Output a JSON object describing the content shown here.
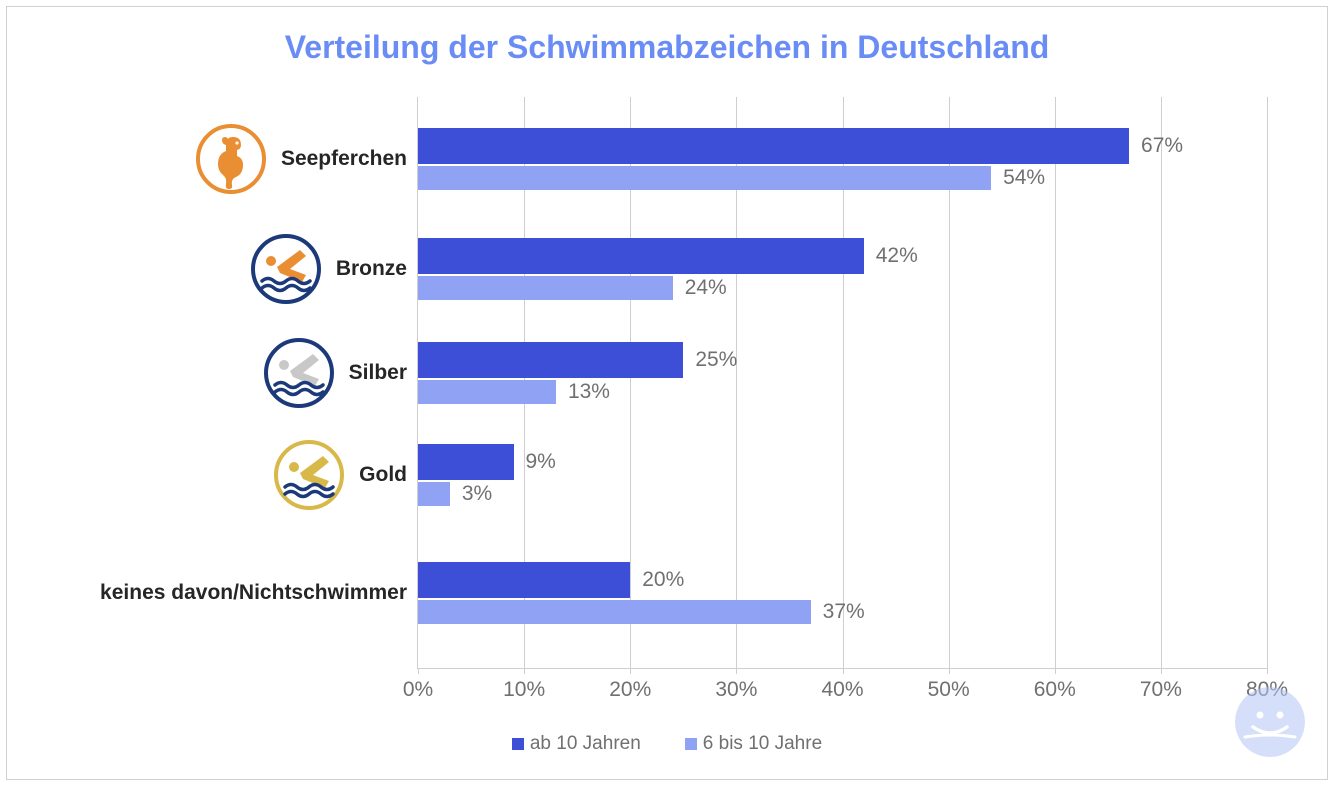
{
  "chart": {
    "type": "grouped-horizontal-bar",
    "title": "Verteilung der Schwimmabzeichen in Deutschland",
    "title_color": "#6a8cf5",
    "title_fontsize": 32,
    "background_color": "#ffffff",
    "border_color": "#d0d0d0",
    "grid_color": "#cfcfcf",
    "axis_label_color": "#707070",
    "axis_label_fontsize": 21,
    "cat_label_fontsize": 21,
    "value_label_fontsize": 21,
    "bar_height_primary": 36,
    "bar_height_secondary": 24,
    "xlim": [
      0,
      80
    ],
    "xtick_step": 10,
    "xtick_labels": [
      "0%",
      "10%",
      "20%",
      "30%",
      "40%",
      "50%",
      "60%",
      "70%",
      "80%"
    ],
    "series": [
      {
        "key": "over10",
        "label": "ab 10 Jahren",
        "color": "#3d4fd6"
      },
      {
        "key": "6to10",
        "label": "6 bis 10 Jahre",
        "color": "#8fa2f3"
      }
    ],
    "categories": [
      {
        "label": "Seepferchen",
        "icon": "seahorse",
        "icon_ring": "#e98e33",
        "icon_accent": "#e98e33",
        "icon_accent2": "#e98e33",
        "values": {
          "over10": 67,
          "6to10": 54
        },
        "value_labels": {
          "over10": "67%",
          "6to10": "54%"
        }
      },
      {
        "label": "Bronze",
        "icon": "swimmer",
        "icon_ring": "#1c3a7a",
        "icon_accent": "#e98e33",
        "icon_accent2": "#1c3a7a",
        "values": {
          "over10": 42,
          "6to10": 24
        },
        "value_labels": {
          "over10": "42%",
          "6to10": "24%"
        }
      },
      {
        "label": "Silber",
        "icon": "swimmer",
        "icon_ring": "#1c3a7a",
        "icon_accent": "#c8c8c8",
        "icon_accent2": "#1c3a7a",
        "values": {
          "over10": 25,
          "6to10": 13
        },
        "value_labels": {
          "over10": "25%",
          "6to10": "13%"
        }
      },
      {
        "label": "Gold",
        "icon": "swimmer",
        "icon_ring": "#d9b84a",
        "icon_accent": "#d9b84a",
        "icon_accent2": "#1c3a7a",
        "values": {
          "over10": 9,
          "6to10": 3
        },
        "value_labels": {
          "over10": "9%",
          "6to10": "3%"
        }
      },
      {
        "label": "keines davon/Nichtschwimmer",
        "icon": null,
        "values": {
          "over10": 20,
          "6to10": 37
        },
        "value_labels": {
          "over10": "20%",
          "6to10": "37%"
        }
      }
    ],
    "legend_fontsize": 19,
    "legend_swatch_size": 12,
    "watermark_color": "#b3c5f7"
  }
}
